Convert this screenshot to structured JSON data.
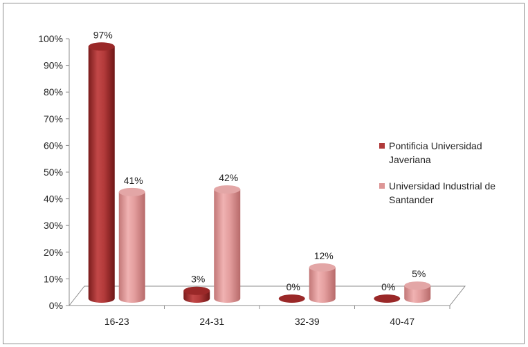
{
  "chart_data": {
    "type": "bar",
    "title": "",
    "xlabel": "",
    "ylabel": "",
    "categories": [
      "16-23",
      "24-31",
      "32-39",
      "40-47"
    ],
    "series": [
      {
        "name": "Pontificia Universidad Javeriana",
        "values": [
          97,
          3,
          0,
          0
        ],
        "labels": [
          "97%",
          "3%",
          "0%",
          "0%"
        ],
        "color": "#b03a3a"
      },
      {
        "name": "Universidad Industrial de Santander",
        "values": [
          41,
          42,
          12,
          5
        ],
        "labels": [
          "41%",
          "42%",
          "12%",
          "5%"
        ],
        "color": "#dd9696"
      }
    ],
    "y_ticks": [
      "0%",
      "10%",
      "20%",
      "30%",
      "40%",
      "50%",
      "60%",
      "70%",
      "80%",
      "90%",
      "100%"
    ],
    "ylim": [
      0,
      100
    ],
    "grid": false,
    "legend_position": "right",
    "style": "3d-cylinder"
  }
}
